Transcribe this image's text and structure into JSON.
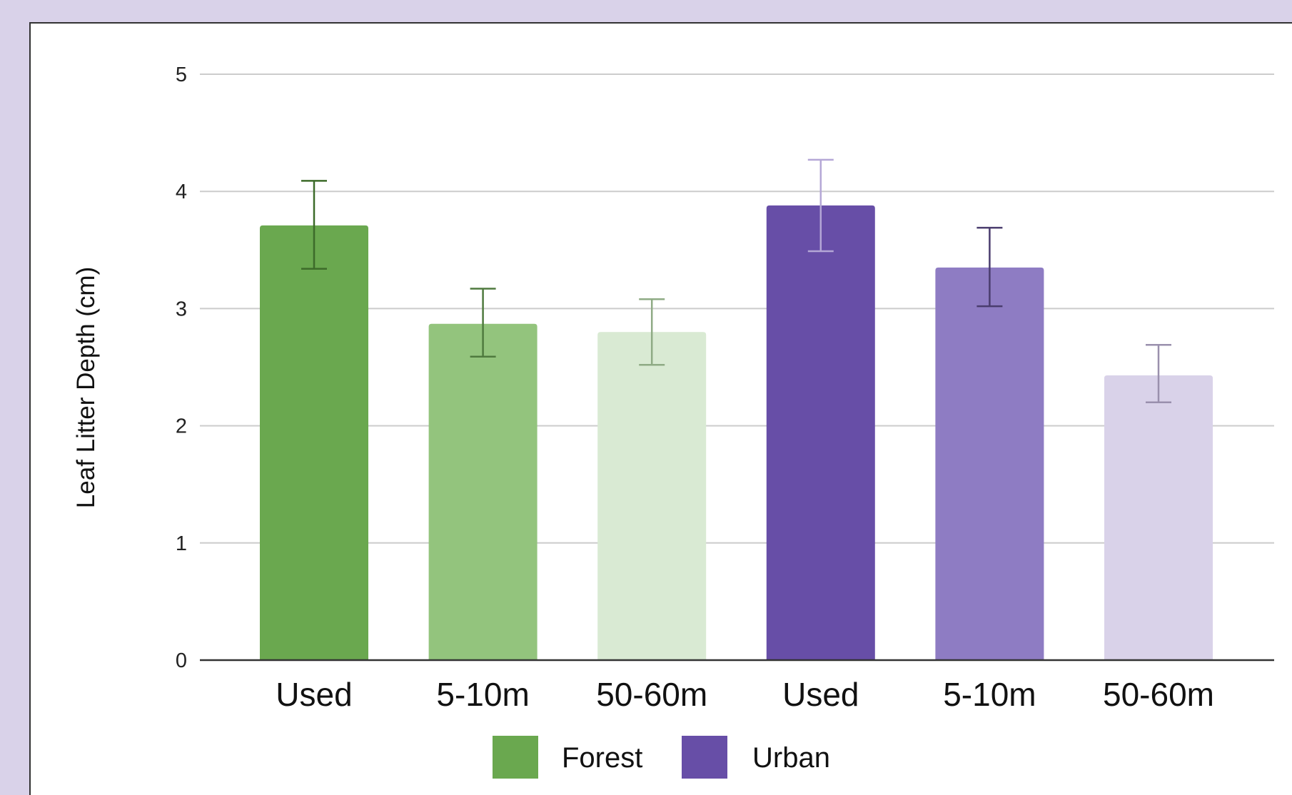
{
  "chart_data": {
    "type": "bar",
    "ylabel": "Leaf Litter Depth (cm)",
    "ylim": [
      0,
      5
    ],
    "yticks": [
      0,
      1,
      2,
      3,
      4,
      5
    ],
    "grid": true,
    "categories": [
      "Used",
      "5-10m",
      "50-60m",
      "Used",
      "5-10m",
      "50-60m"
    ],
    "bars": [
      {
        "category": "Used",
        "group": "Forest",
        "value": 3.71,
        "err_low": 3.34,
        "err_high": 4.09,
        "color": "#6aa84f",
        "err_color": "#3d6b2a"
      },
      {
        "category": "5-10m",
        "group": "Forest",
        "value": 2.87,
        "err_low": 2.59,
        "err_high": 3.17,
        "color": "#93c47d",
        "err_color": "#4f7a3e"
      },
      {
        "category": "50-60m",
        "group": "Forest",
        "value": 2.8,
        "err_low": 2.52,
        "err_high": 3.08,
        "color": "#d9ead3",
        "err_color": "#8fab85"
      },
      {
        "category": "Used",
        "group": "Urban",
        "value": 3.88,
        "err_low": 3.49,
        "err_high": 4.27,
        "color": "#674ea7",
        "err_color": "#b4a7d6"
      },
      {
        "category": "5-10m",
        "group": "Urban",
        "value": 3.35,
        "err_low": 3.02,
        "err_high": 3.69,
        "color": "#8e7cc3",
        "err_color": "#4a3d6e"
      },
      {
        "category": "50-60m",
        "group": "Urban",
        "value": 2.43,
        "err_low": 2.2,
        "err_high": 2.69,
        "color": "#d9d2e9",
        "err_color": "#9a90ad"
      }
    ],
    "legend": {
      "placement": "bottom",
      "entries": [
        {
          "name": "Forest",
          "color": "#6aa84f"
        },
        {
          "name": "Urban",
          "color": "#674ea7"
        }
      ]
    }
  }
}
